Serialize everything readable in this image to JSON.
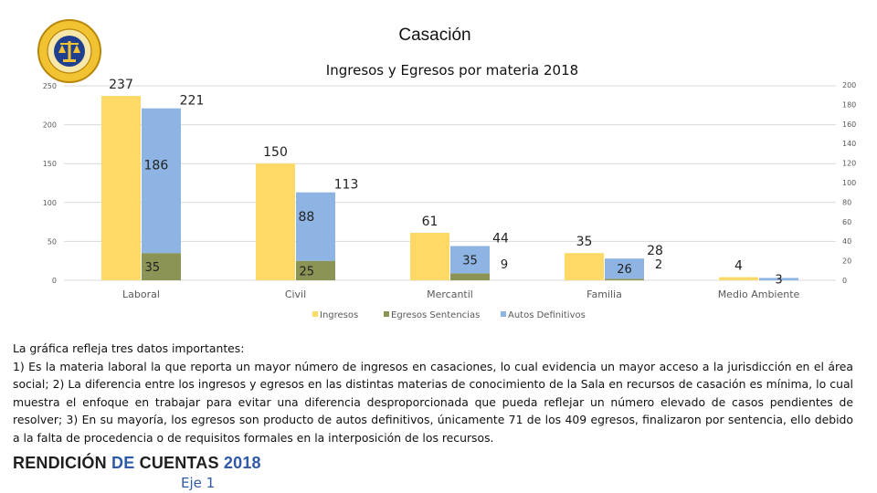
{
  "slide": {
    "title": "Casación",
    "section_label": "Eje 1"
  },
  "logo": {
    "seal_text_top": "ÓRGANO JUDICIAL",
    "seal_text_bottom": "CORTE SUPREMA DE JUSTICIA",
    "footer_word1": "RENDICIÓN",
    "footer_word2": "DE",
    "footer_word3": "CUENTAS",
    "footer_year": "2018"
  },
  "description": {
    "lines": [
      "La gráfica refleja tres datos importantes:",
      "1) Es la materia laboral la que reporta un mayor número de ingresos en casaciones, lo cual evidencia un mayor acceso a la jurisdicción en el área social; 2) La diferencia entre los ingresos y egresos en las distintas materias de conocimiento de la Sala en recursos de casación es mínima, lo cual muestra el enfoque en trabajar para evitar una diferencia desproporcionada que pueda reflejar un número elevado de casos pendientes de resolver; 3) En su mayoría, los egresos son producto de autos definitivos, únicamente 71 de los 409 egresos, finalizaron por sentencia, ello debido a la falta de procedencia o de requisitos formales en la interposición de los recursos."
    ]
  },
  "colors": {
    "ingresos": "#ffd966",
    "autos": "#8eb4e3",
    "sentencias": "#8c9455",
    "gridline": "#d9d9d9",
    "footer_blue": "#2f5aa8"
  },
  "chart_data": {
    "type": "bar",
    "title": "Ingresos y Egresos por materia 2018",
    "categories": [
      "Laboral",
      "Civil",
      "Mercantil",
      "Familia",
      "Medio Ambiente"
    ],
    "series": [
      {
        "name": "Ingresos",
        "values": [
          237,
          150,
          61,
          35,
          4
        ],
        "label_text": [
          "237",
          "150",
          "61",
          "35",
          "4"
        ]
      },
      {
        "name": "Egresos Sentencias",
        "values": [
          35,
          25,
          9,
          2,
          0
        ],
        "label_text": [
          "35",
          "25",
          "9",
          "2",
          ""
        ]
      },
      {
        "name": "Autos Definitivos",
        "values": [
          186,
          88,
          35,
          26,
          3
        ],
        "label_text": [
          "186",
          "88",
          "35",
          "26",
          "3"
        ]
      }
    ],
    "egresos_totals": [
      221,
      113,
      44,
      28,
      3
    ],
    "egresos_total_text": [
      "221",
      "113",
      "44",
      "28",
      ""
    ],
    "left_axis": {
      "ylim": [
        0,
        250
      ],
      "ticks": [
        "0",
        "50",
        "100",
        "150",
        "200",
        "250"
      ]
    },
    "right_axis": {
      "ylim": [
        0,
        200
      ],
      "ticks": [
        "0",
        "20",
        "40",
        "60",
        "80",
        "100",
        "120",
        "140",
        "160",
        "180",
        "200"
      ]
    },
    "legend_position": "bottom",
    "grid": true
  }
}
